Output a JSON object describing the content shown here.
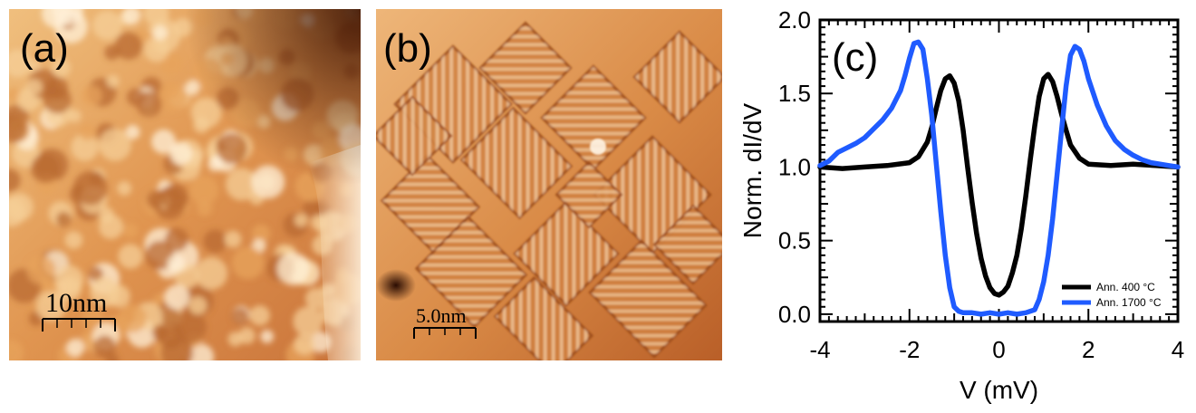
{
  "panels": {
    "a": {
      "label": "(a)",
      "scale_bar": "10nm"
    },
    "b": {
      "label": "(b)",
      "scale_bar": "5.0nm"
    },
    "c": {
      "label": "(c)"
    }
  },
  "colors": {
    "stm_bright": "#fbe6c6",
    "stm_mid": "#e7a35c",
    "stm_dark": "#6b2c08",
    "series_400": "#000000",
    "series_1700": "#1f5bff"
  },
  "chart_data": {
    "type": "line",
    "title": "",
    "xlabel": "V (mV)",
    "ylabel": "Norm. dI/dV",
    "xlim": [
      -4,
      4
    ],
    "ylim": [
      -0.05,
      2.0
    ],
    "xticks": [
      -4,
      -2,
      0,
      2,
      4
    ],
    "xtick_labels": [
      "-4",
      "-2",
      "0",
      "2",
      "4"
    ],
    "yticks": [
      0.0,
      0.5,
      1.0,
      1.5,
      2.0
    ],
    "ytick_labels": [
      "0.0",
      "0.5",
      "1.0",
      "1.5",
      "2.0"
    ],
    "legend_position": "bottom-right",
    "grid": false,
    "series": [
      {
        "name": "Ann. 400 °C",
        "color": "#000000",
        "x": [
          -4.0,
          -3.5,
          -3.0,
          -2.5,
          -2.0,
          -1.8,
          -1.6,
          -1.5,
          -1.4,
          -1.3,
          -1.2,
          -1.1,
          -1.0,
          -0.9,
          -0.8,
          -0.7,
          -0.6,
          -0.5,
          -0.4,
          -0.3,
          -0.2,
          -0.1,
          0.0,
          0.1,
          0.2,
          0.3,
          0.4,
          0.5,
          0.6,
          0.7,
          0.8,
          0.9,
          1.0,
          1.1,
          1.2,
          1.3,
          1.4,
          1.5,
          1.6,
          1.8,
          2.0,
          2.5,
          3.0,
          3.5,
          4.0
        ],
        "y": [
          1.0,
          0.99,
          1.0,
          1.01,
          1.03,
          1.07,
          1.17,
          1.27,
          1.4,
          1.52,
          1.6,
          1.62,
          1.57,
          1.45,
          1.25,
          1.0,
          0.76,
          0.55,
          0.38,
          0.26,
          0.18,
          0.14,
          0.13,
          0.15,
          0.19,
          0.28,
          0.4,
          0.58,
          0.8,
          1.05,
          1.28,
          1.48,
          1.6,
          1.63,
          1.58,
          1.48,
          1.36,
          1.25,
          1.15,
          1.06,
          1.02,
          1.01,
          1.02,
          1.01,
          1.0
        ]
      },
      {
        "name": "Ann. 1700 °C",
        "color": "#1f5bff",
        "x": [
          -4.0,
          -3.8,
          -3.6,
          -3.4,
          -3.2,
          -3.0,
          -2.8,
          -2.6,
          -2.4,
          -2.2,
          -2.1,
          -2.0,
          -1.9,
          -1.8,
          -1.7,
          -1.6,
          -1.5,
          -1.4,
          -1.3,
          -1.2,
          -1.1,
          -1.0,
          -0.9,
          -0.8,
          -0.6,
          -0.4,
          -0.2,
          0.0,
          0.2,
          0.4,
          0.6,
          0.8,
          0.9,
          1.0,
          1.1,
          1.2,
          1.3,
          1.4,
          1.5,
          1.6,
          1.7,
          1.8,
          1.9,
          2.0,
          2.2,
          2.4,
          2.6,
          2.8,
          3.0,
          3.2,
          3.4,
          3.6,
          3.8,
          4.0
        ],
        "y": [
          1.01,
          1.04,
          1.1,
          1.13,
          1.16,
          1.2,
          1.26,
          1.32,
          1.4,
          1.52,
          1.62,
          1.74,
          1.84,
          1.85,
          1.8,
          1.6,
          1.35,
          1.02,
          0.7,
          0.4,
          0.18,
          0.05,
          0.02,
          0.01,
          0.01,
          0.0,
          0.01,
          0.0,
          0.01,
          0.0,
          0.01,
          0.03,
          0.1,
          0.22,
          0.4,
          0.65,
          0.95,
          1.25,
          1.55,
          1.76,
          1.82,
          1.8,
          1.72,
          1.6,
          1.42,
          1.28,
          1.18,
          1.12,
          1.08,
          1.05,
          1.03,
          1.02,
          1.01,
          1.0
        ]
      }
    ]
  }
}
